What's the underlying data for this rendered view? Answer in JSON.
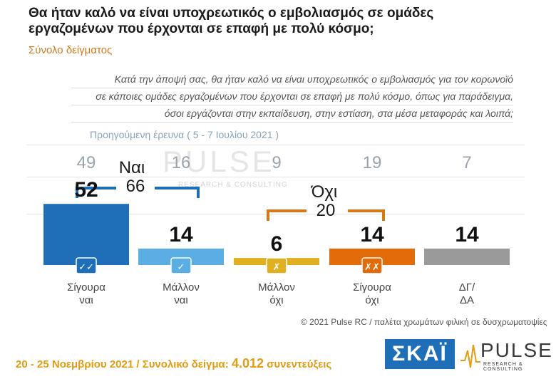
{
  "header": {
    "title_line1": "Θα ήταν καλό να είναι υποχρεωτικός ο εμβολιασμός σε ομάδες",
    "title_line2": "εργαζομένων που έρχονται σε επαφή με πολύ κόσμο;",
    "subtitle": "Σύνολο δείγματος"
  },
  "question": {
    "line1": "Κατά την άποψή σας, θα ήταν καλό να είναι υποχρεωτικός ο εμβολιασμός για τον κορωνοϊό",
    "line2": "σε κάποιες ομάδες εργαζομένων που έρχονται σε επαφή με πολύ κόσμο, όπως για παράδειγμα,",
    "line3": "όσοι εργάζονται στην εκπαίδευση, στην εστίαση, στα μέσα μεταφοράς και λοιπά;"
  },
  "previous_label": "Προηγούμενη έρευνα  ( 5 - 7 Ιουλίου 2021 )",
  "watermark": {
    "main": "PULSE",
    "sub": "RESEARCH & CONSULTING"
  },
  "groups": {
    "yes_label": "Ναι",
    "yes_total": "66",
    "yes_color": "#1f6fb8",
    "no_label": "Όχι",
    "no_total": "20",
    "no_color": "#d4781c"
  },
  "chart_data": {
    "type": "bar",
    "categories": [
      "Σίγουρα ναι",
      "Μάλλον ναι",
      "Μάλλον όχι",
      "Σίγουρα όχι",
      "ΔΓ/ΔΑ"
    ],
    "category_lines": [
      [
        "Σίγουρα",
        "ναι"
      ],
      [
        "Μάλλον",
        "ναι"
      ],
      [
        "Μάλλον",
        "όχι"
      ],
      [
        "Σίγουρα",
        "όχι"
      ],
      [
        "ΔΓ/",
        "ΔΑ"
      ]
    ],
    "values": [
      52,
      14,
      6,
      14,
      14
    ],
    "previous_values": [
      49,
      16,
      9,
      19,
      7
    ],
    "colors": [
      "#1f6fb8",
      "#5aaee3",
      "#e0b020",
      "#e36c0a",
      "#9a9a9a"
    ],
    "icon_marks": [
      "✓✓",
      "✓",
      "✗",
      "✗✗",
      ""
    ],
    "ylim": [
      0,
      100
    ]
  },
  "footer": {
    "note": "© 2021 Pulse RC   /   παλέτα χρωμάτων φιλική σε δυσχρωματοψίες",
    "date_text": "20 - 25  Νοεμβρίου 2021  /  Συνολικό δείγμα:",
    "sample_size": "4.012",
    "interviews": "συνεντεύξεις"
  },
  "logos": {
    "skai": "ΣΚΑΪ",
    "pulse": "PULSE",
    "pulse_sub": "RESEARCH & CONSULTING"
  }
}
